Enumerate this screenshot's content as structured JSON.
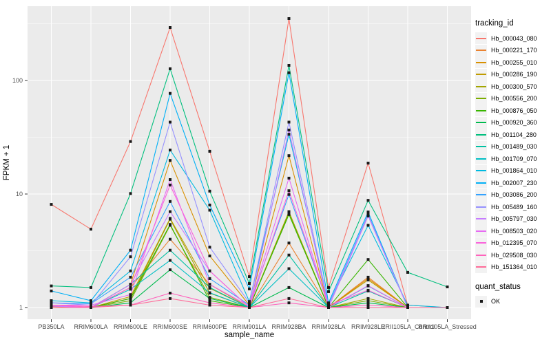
{
  "chart_data": {
    "type": "line",
    "title": "",
    "xlabel": "sample_name",
    "ylabel": "FPKM + 1",
    "y_scale": "log10",
    "ylim": [
      0.8,
      450
    ],
    "grid": true,
    "panel_bg": "#EBEBEB",
    "grid_color": "#FFFFFF",
    "point_color": "#1a1a1a",
    "y_ticks": [
      {
        "label": "1",
        "value": 1
      },
      {
        "label": "10",
        "value": 10
      },
      {
        "label": "100",
        "value": 100
      }
    ],
    "categories": [
      "PB350LA",
      "RRIM600LA",
      "RRIM600LE",
      "RRIM600SE",
      "RRIM600PE",
      "RRIM901LA",
      "RRIM928BA",
      "RRIM928LA",
      "RRIM928LE",
      "RRII105LA_Control",
      "RRII105LA_Stressed"
    ],
    "series": [
      {
        "name": "Hb_000043_080",
        "color": "#F8766D",
        "values": [
          8.1,
          4.9,
          29,
          293,
          23.8,
          1.87,
          351,
          1.5,
          18.7,
          1.05,
          1.0
        ]
      },
      {
        "name": "Hb_000221_170",
        "color": "#EA8331",
        "values": [
          1.02,
          1.0,
          1.5,
          4.0,
          1.6,
          1.0,
          3.7,
          1.0,
          1.85,
          1.0,
          1.0
        ]
      },
      {
        "name": "Hb_000255_010",
        "color": "#D89000",
        "values": [
          1.0,
          1.0,
          1.6,
          19.8,
          2.85,
          1.05,
          21.8,
          1.0,
          1.8,
          1.0,
          1.0
        ]
      },
      {
        "name": "Hb_000286_190",
        "color": "#C09B00",
        "values": [
          1.0,
          1.0,
          1.25,
          6.1,
          1.48,
          1.0,
          7.0,
          1.0,
          1.75,
          1.0,
          1.0
        ]
      },
      {
        "name": "Hb_000300_570",
        "color": "#A3A500",
        "values": [
          1.0,
          1.0,
          1.2,
          6.0,
          1.34,
          1.0,
          6.9,
          1.0,
          1.2,
          1.0,
          1.0
        ]
      },
      {
        "name": "Hb_000556_200",
        "color": "#7CAE00",
        "values": [
          1.0,
          1.0,
          1.15,
          5.3,
          1.23,
          1.0,
          6.8,
          1.0,
          1.15,
          1.0,
          1.0
        ]
      },
      {
        "name": "Hb_000876_050",
        "color": "#39B600",
        "values": [
          1.0,
          1.0,
          1.2,
          5.4,
          1.15,
          1.0,
          6.6,
          1.0,
          2.65,
          1.0,
          1.0
        ]
      },
      {
        "name": "Hb_000920_360",
        "color": "#00BB4E",
        "values": [
          1.0,
          1.0,
          1.1,
          2.15,
          1.2,
          1.0,
          1.5,
          1.0,
          1.1,
          1.0,
          1.0
        ]
      },
      {
        "name": "Hb_001104_280",
        "color": "#00BF7D",
        "values": [
          1.55,
          1.5,
          10.1,
          127,
          10.6,
          1.63,
          136,
          1.38,
          8.8,
          2.04,
          1.52
        ]
      },
      {
        "name": "Hb_001489_030",
        "color": "#00C1A3",
        "values": [
          1.0,
          1.0,
          1.6,
          3.2,
          1.5,
          1.0,
          2.9,
          1.0,
          1.4,
          1.0,
          1.0
        ]
      },
      {
        "name": "Hb_001709_070",
        "color": "#00BFC4",
        "values": [
          1.0,
          1.0,
          1.45,
          2.6,
          1.35,
          1.0,
          2.2,
          1.0,
          1.55,
          1.0,
          1.0
        ]
      },
      {
        "name": "Hb_001864_010",
        "color": "#00BAE0",
        "values": [
          1.15,
          1.1,
          2.1,
          24.4,
          7.2,
          1.13,
          33.6,
          1.08,
          5.3,
          1.05,
          1.0
        ]
      },
      {
        "name": "Hb_002007_230",
        "color": "#00B0F6",
        "values": [
          1.4,
          1.15,
          3.2,
          77,
          8.0,
          1.46,
          117,
          1.1,
          6.95,
          1.0,
          1.0
        ]
      },
      {
        "name": "Hb_003086_200",
        "color": "#35A2FF",
        "values": [
          1.1,
          1.08,
          1.85,
          8.6,
          1.8,
          1.05,
          9.9,
          1.05,
          6.6,
          1.0,
          1.0
        ]
      },
      {
        "name": "Hb_005489_160",
        "color": "#9590FF",
        "values": [
          1.1,
          1.05,
          2.8,
          43,
          3.4,
          1.1,
          43,
          1.05,
          6.5,
          1.0,
          1.0
        ]
      },
      {
        "name": "Hb_005797_030",
        "color": "#C77CFF",
        "values": [
          1.03,
          1.0,
          1.6,
          7.0,
          2.1,
          1.0,
          36.6,
          1.0,
          6.4,
          1.0,
          1.0
        ]
      },
      {
        "name": "Hb_008503_020",
        "color": "#E76BF3",
        "values": [
          1.05,
          1.05,
          1.3,
          13.4,
          1.6,
          1.03,
          13.8,
          1.0,
          1.56,
          1.0,
          1.0
        ]
      },
      {
        "name": "Hb_012395_070",
        "color": "#FA62DB",
        "values": [
          1.05,
          1.0,
          1.5,
          12.0,
          2.1,
          1.0,
          10.7,
          1.05,
          1.42,
          1.0,
          1.0
        ]
      },
      {
        "name": "Hb_029508_030",
        "color": "#FF62BC",
        "values": [
          1.05,
          1.02,
          1.05,
          1.34,
          1.1,
          1.0,
          1.1,
          1.0,
          1.05,
          1.0,
          1.0
        ]
      },
      {
        "name": "Hb_151364_010",
        "color": "#FF6A98",
        "values": [
          1.0,
          1.0,
          1.05,
          1.2,
          1.05,
          1.0,
          1.2,
          1.0,
          1.0,
          1.0,
          1.0
        ]
      }
    ]
  },
  "legend": {
    "title": "tracking_id"
  },
  "legend2": {
    "title": "quant_status",
    "items": [
      {
        "label": "OK"
      }
    ]
  }
}
